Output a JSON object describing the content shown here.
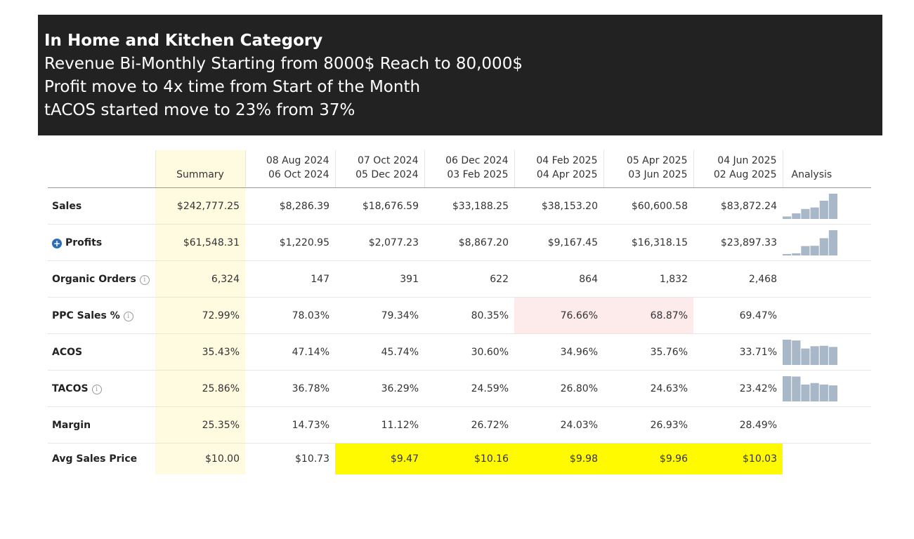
{
  "banner": {
    "title": "In Home and Kitchen Category",
    "line1": "Revenue Bi-Monthly Starting from 8000$ Reach to 80,000$",
    "line2": "Profit move to 4x time from Start of the Month",
    "line3": "tACOS started move to 23% from 37%"
  },
  "table": {
    "headers": {
      "summary": "Summary",
      "analysis": "Analysis",
      "periods": [
        {
          "start": "08 Aug 2024",
          "end": "06 Oct 2024"
        },
        {
          "start": "07 Oct 2024",
          "end": "05 Dec 2024"
        },
        {
          "start": "06 Dec 2024",
          "end": "03 Feb 2025"
        },
        {
          "start": "04 Feb 2025",
          "end": "04 Apr 2025"
        },
        {
          "start": "05 Apr 2025",
          "end": "03 Jun 2025"
        },
        {
          "start": "04 Jun 2025",
          "end": "02 Aug 2025"
        }
      ]
    },
    "rows": [
      {
        "label": "Sales",
        "summary": "$242,777.25",
        "values": [
          "$8,286.39",
          "$18,676.59",
          "$33,188.25",
          "$38,153.20",
          "$60,600.58",
          "$83,872.24"
        ],
        "spark": [
          8286.39,
          18676.59,
          33188.25,
          38153.2,
          60600.58,
          83872.24
        ]
      },
      {
        "label": "Profits",
        "summary": "$61,548.31",
        "values": [
          "$1,220.95",
          "$2,077.23",
          "$8,867.20",
          "$9,167.45",
          "$16,318.15",
          "$23,897.33"
        ],
        "spark": [
          1220.95,
          2077.23,
          8867.2,
          9167.45,
          16318.15,
          23897.33
        ]
      },
      {
        "label": "Organic Orders",
        "summary": "6,324",
        "values": [
          "147",
          "391",
          "622",
          "864",
          "1,832",
          "2,468"
        ]
      },
      {
        "label": "PPC Sales %",
        "summary": "72.99%",
        "values": [
          "78.03%",
          "79.34%",
          "80.35%",
          "76.66%",
          "68.87%",
          "69.47%"
        ]
      },
      {
        "label": "ACOS",
        "summary": "35.43%",
        "values": [
          "47.14%",
          "45.74%",
          "30.60%",
          "34.96%",
          "35.76%",
          "33.71%"
        ],
        "spark": [
          47.14,
          45.74,
          30.6,
          34.96,
          35.76,
          33.71
        ]
      },
      {
        "label": "TACOS",
        "summary": "25.86%",
        "values": [
          "36.78%",
          "36.29%",
          "24.59%",
          "26.80%",
          "24.63%",
          "23.42%"
        ],
        "spark": [
          36.78,
          36.29,
          24.59,
          26.8,
          24.63,
          23.42
        ]
      },
      {
        "label": "Margin",
        "summary": "25.35%",
        "values": [
          "14.73%",
          "11.12%",
          "26.72%",
          "24.03%",
          "26.93%",
          "28.49%"
        ]
      },
      {
        "label": "Avg Sales Price",
        "summary": "$10.00",
        "values": [
          "$10.73",
          "$9.47",
          "$10.16",
          "$9.98",
          "$9.96",
          "$10.03"
        ]
      }
    ]
  },
  "colors": {
    "banner_bg": "#222222",
    "summary_bg": "#fffbe0",
    "highlight_pink": "#fdeaea",
    "highlight_yellow": "#fffa00",
    "spark_bar": "#a9b8c8",
    "link_blue": "#2a6db5"
  }
}
